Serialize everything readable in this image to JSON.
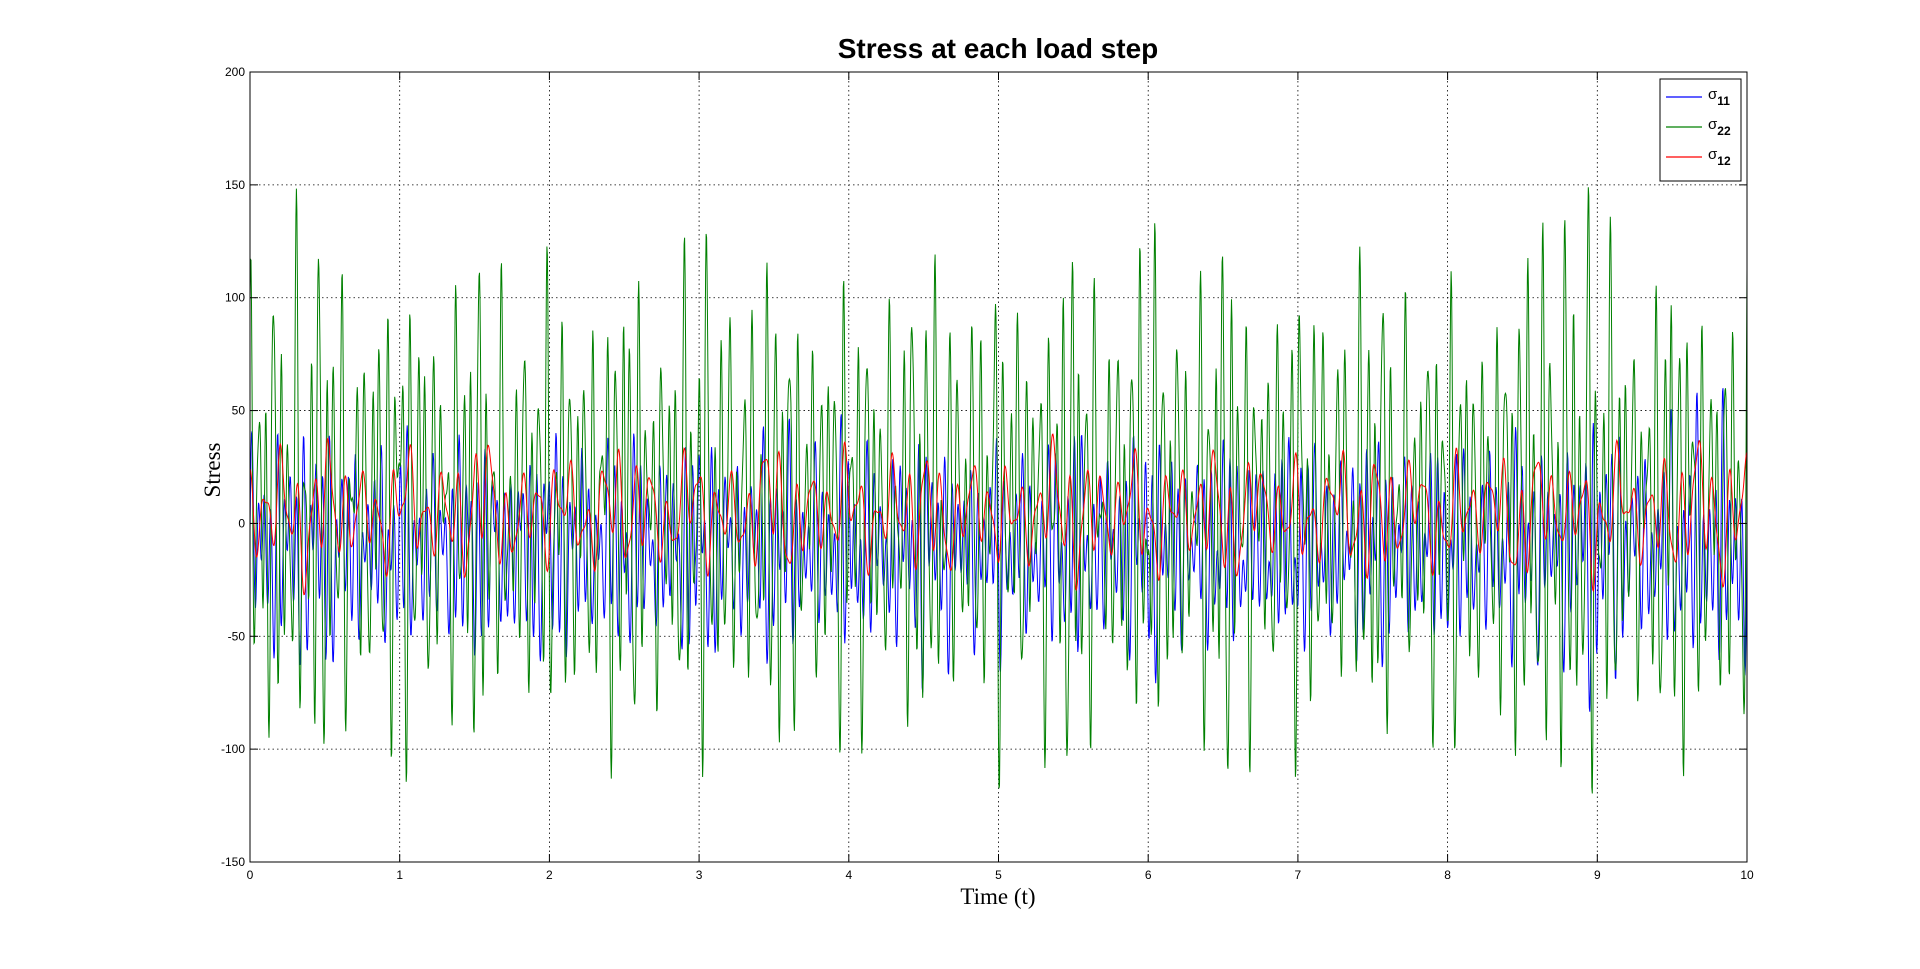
{
  "chart_data": {
    "type": "line",
    "title": "Stress at each load step",
    "xlabel": "Time (t)",
    "ylabel": "Stress",
    "xlim": [
      0,
      10
    ],
    "ylim": [
      -150,
      200
    ],
    "xticks": [
      0,
      1,
      2,
      3,
      4,
      5,
      6,
      7,
      8,
      9,
      10
    ],
    "yticks": [
      -150,
      -100,
      -50,
      0,
      50,
      100,
      150,
      200
    ],
    "xtick_labels": [
      "0",
      "1",
      "2",
      "3",
      "4",
      "5",
      "6",
      "7",
      "8",
      "9",
      "10"
    ],
    "ytick_labels": [
      "-150",
      "-100",
      "-50",
      "0",
      "50",
      "100",
      "150",
      "200"
    ],
    "grid": true,
    "legend_position": "top-right",
    "series": [
      {
        "symbol": "σ",
        "subscript": "11",
        "color": "#0000ff",
        "approx_range": [
          -85,
          65
        ],
        "x_sample": [
          0,
          0.5,
          1,
          1.5,
          2,
          2.5,
          3,
          3.5,
          4,
          4.5,
          5,
          5.5,
          6,
          6.5,
          7,
          7.5,
          8,
          8.5,
          9,
          9.5,
          10
        ],
        "y_sample": [
          20,
          55,
          -40,
          50,
          -60,
          45,
          -55,
          50,
          -45,
          55,
          -35,
          50,
          -60,
          45,
          -50,
          55,
          -40,
          50,
          -85,
          45,
          60
        ]
      },
      {
        "symbol": "σ",
        "subscript": "22",
        "color": "#008000",
        "approx_range": [
          -140,
          154
        ],
        "x_sample": [
          0,
          0.5,
          1,
          1.5,
          2,
          2.5,
          3,
          3.5,
          4,
          4.5,
          5,
          5.5,
          6,
          6.5,
          7,
          7.5,
          8,
          8.5,
          9,
          9.5,
          10
        ],
        "y_sample": [
          65,
          125,
          -120,
          110,
          -90,
          120,
          -135,
          115,
          -95,
          110,
          -100,
          140,
          -135,
          145,
          -100,
          110,
          -95,
          115,
          154,
          -130,
          105
        ]
      },
      {
        "symbol": "σ",
        "subscript": "12",
        "color": "#ff0000",
        "approx_range": [
          -35,
          45
        ],
        "x_sample": [
          0,
          0.5,
          1,
          1.5,
          2,
          2.5,
          3,
          3.5,
          4,
          4.5,
          5,
          5.5,
          6,
          6.5,
          7,
          7.5,
          8,
          8.5,
          9,
          9.5,
          10
        ],
        "y_sample": [
          10,
          40,
          -30,
          45,
          -25,
          40,
          -30,
          40,
          -25,
          40,
          -20,
          45,
          -30,
          40,
          -25,
          45,
          -30,
          40,
          -35,
          35,
          35
        ]
      }
    ]
  }
}
